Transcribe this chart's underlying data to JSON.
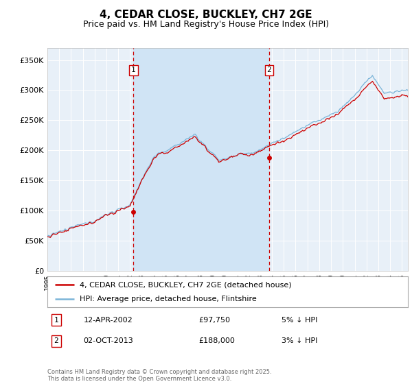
{
  "title": "4, CEDAR CLOSE, BUCKLEY, CH7 2GE",
  "subtitle": "Price paid vs. HM Land Registry's House Price Index (HPI)",
  "title_fontsize": 11,
  "subtitle_fontsize": 9,
  "background_color": "#ffffff",
  "plot_bg_color": "#e8f0f8",
  "plot_bg_highlight": "#d0e4f5",
  "grid_color": "#ffffff",
  "ylim": [
    0,
    370000
  ],
  "yticks": [
    0,
    50000,
    100000,
    150000,
    200000,
    250000,
    300000,
    350000
  ],
  "ytick_labels": [
    "£0",
    "£50K",
    "£100K",
    "£150K",
    "£200K",
    "£250K",
    "£300K",
    "£350K"
  ],
  "start_year": 1995,
  "end_year": 2025,
  "sale1_date": "12-APR-2002",
  "sale1_price": 97750,
  "sale1_year": 2002.29,
  "sale2_date": "02-OCT-2013",
  "sale2_price": 188000,
  "sale2_year": 2013.75,
  "sale1_pct": "5% ↓ HPI",
  "sale2_pct": "3% ↓ HPI",
  "legend_line1": "4, CEDAR CLOSE, BUCKLEY, CH7 2GE (detached house)",
  "legend_line2": "HPI: Average price, detached house, Flintshire",
  "footer": "Contains HM Land Registry data © Crown copyright and database right 2025.\nThis data is licensed under the Open Government Licence v3.0.",
  "sale_line_color": "#cc0000",
  "hpi_line_color": "#7ab4d8",
  "sale_marker_color": "#cc0000"
}
